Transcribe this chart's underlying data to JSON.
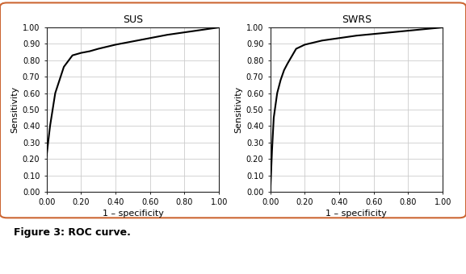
{
  "title_left": "SUS",
  "title_right": "SWRS",
  "xlabel": "1 – specificity",
  "ylabel": "Sensitivity",
  "yticks": [
    0.0,
    0.1,
    0.2,
    0.3,
    0.4,
    0.5,
    0.6,
    0.7,
    0.8,
    0.9,
    1.0
  ],
  "xticks": [
    0.0,
    0.2,
    0.4,
    0.6,
    0.8,
    1.0
  ],
  "ylim": [
    0.0,
    1.0
  ],
  "xlim": [
    0.0,
    1.0
  ],
  "sus_x": [
    0.0,
    0.02,
    0.05,
    0.1,
    0.15,
    0.2,
    0.25,
    0.3,
    0.4,
    0.5,
    0.6,
    0.7,
    0.8,
    0.9,
    1.0
  ],
  "sus_y": [
    0.22,
    0.4,
    0.6,
    0.76,
    0.83,
    0.845,
    0.855,
    0.87,
    0.895,
    0.915,
    0.935,
    0.955,
    0.97,
    0.985,
    1.0
  ],
  "swrs_x": [
    0.0,
    0.01,
    0.02,
    0.04,
    0.06,
    0.08,
    0.1,
    0.15,
    0.2,
    0.3,
    0.4,
    0.5,
    0.6,
    0.7,
    0.8,
    0.9,
    1.0
  ],
  "swrs_y": [
    0.0,
    0.25,
    0.45,
    0.6,
    0.68,
    0.74,
    0.78,
    0.87,
    0.895,
    0.92,
    0.935,
    0.95,
    0.96,
    0.97,
    0.98,
    0.99,
    1.0
  ],
  "line_color": "#000000",
  "line_width": 1.5,
  "grid_color": "#cccccc",
  "background_color": "#ffffff",
  "border_color": "#cc6633",
  "tick_label_fontsize": 7,
  "axis_label_fontsize": 8,
  "title_fontsize": 9,
  "figure_caption": "Figure 3: ROC curve.",
  "caption_fontsize": 9,
  "caption_bold": true
}
